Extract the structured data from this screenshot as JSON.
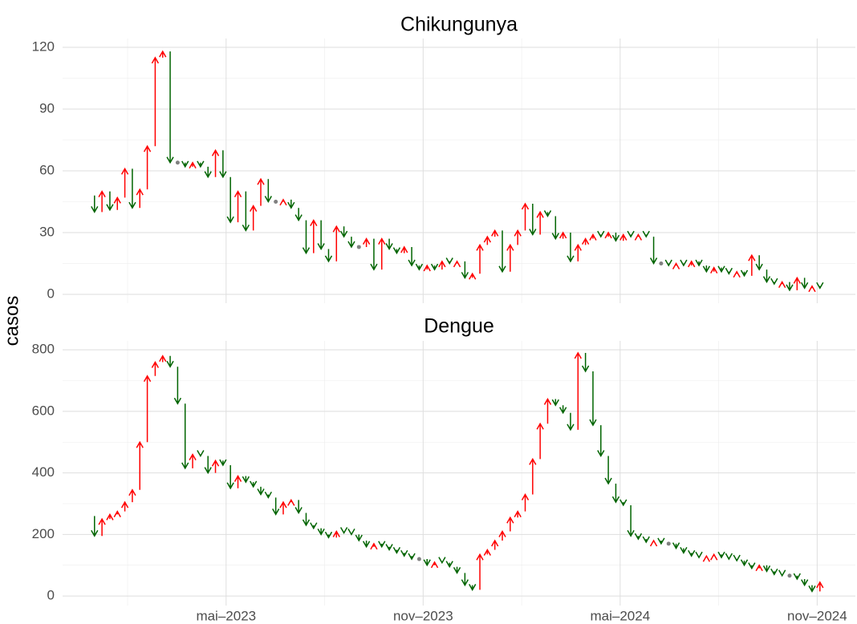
{
  "chart_data": [
    {
      "type": "arrow",
      "title": "Chikungunya",
      "y_label": "casos",
      "x": [
        2022.98,
        2022.999,
        2023.018,
        2023.038,
        2023.057,
        2023.076,
        2023.095,
        2023.114,
        2023.133,
        2023.153,
        2023.172,
        2023.191,
        2023.21,
        2023.229,
        2023.248,
        2023.268,
        2023.287,
        2023.306,
        2023.325,
        2023.344,
        2023.363,
        2023.383,
        2023.402,
        2023.421,
        2023.44,
        2023.459,
        2023.478,
        2023.498,
        2023.517,
        2023.536,
        2023.555,
        2023.574,
        2023.593,
        2023.613,
        2023.632,
        2023.651,
        2023.67,
        2023.689,
        2023.708,
        2023.728,
        2023.747,
        2023.766,
        2023.785,
        2023.804,
        2023.823,
        2023.843,
        2023.862,
        2023.881,
        2023.9,
        2023.919,
        2023.939,
        2023.958,
        2023.977,
        2023.996,
        2024.015,
        2024.034,
        2024.054,
        2024.073,
        2024.092,
        2024.111,
        2024.13,
        2024.149,
        2024.169,
        2024.188,
        2024.207,
        2024.226,
        2024.245,
        2024.264,
        2024.284,
        2024.303,
        2024.322,
        2024.341,
        2024.36,
        2024.379,
        2024.399,
        2024.418,
        2024.437,
        2024.456,
        2024.475,
        2024.494,
        2024.514,
        2024.533,
        2024.552,
        2024.571,
        2024.59,
        2024.609,
        2024.629,
        2024.648,
        2024.667,
        2024.686,
        2024.705,
        2024.724,
        2024.744,
        2024.763,
        2024.782,
        2024.801,
        2024.82,
        2024.84
      ],
      "values": [
        48,
        40,
        50,
        41,
        47,
        61,
        42,
        51,
        72,
        115,
        118,
        64,
        64,
        62,
        64,
        62,
        57,
        70,
        57,
        35,
        50,
        31,
        43,
        56,
        45,
        45,
        46,
        42,
        36,
        20,
        36,
        22,
        16,
        33,
        28,
        23,
        23,
        27,
        12,
        27,
        22,
        20,
        23,
        14,
        12,
        14,
        12,
        16,
        15,
        16,
        8,
        10,
        24,
        28,
        31,
        11,
        24,
        31,
        44,
        29,
        40,
        38,
        27,
        30,
        16,
        24,
        27,
        29,
        28,
        30,
        26,
        29,
        28,
        29,
        28,
        15,
        15,
        14,
        15,
        14,
        16,
        14,
        11,
        13,
        11,
        10,
        11,
        9,
        19,
        12,
        6,
        5,
        6,
        2,
        8,
        3,
        4,
        3
      ],
      "up_color": "#ff0000",
      "down_color": "#006400",
      "flat_color": "#808080",
      "xlim": [
        2022.918,
        2024.93
      ],
      "ylim": [
        -4.3,
        124.3
      ],
      "yticks": [
        0,
        30,
        60,
        90,
        120
      ],
      "grid": true
    },
    {
      "type": "arrow",
      "title": "Dengue",
      "x": [
        2022.98,
        2022.999,
        2023.018,
        2023.038,
        2023.057,
        2023.076,
        2023.095,
        2023.114,
        2023.133,
        2023.153,
        2023.172,
        2023.191,
        2023.21,
        2023.229,
        2023.248,
        2023.268,
        2023.287,
        2023.306,
        2023.325,
        2023.344,
        2023.363,
        2023.383,
        2023.402,
        2023.421,
        2023.44,
        2023.459,
        2023.478,
        2023.498,
        2023.517,
        2023.536,
        2023.555,
        2023.574,
        2023.593,
        2023.613,
        2023.632,
        2023.651,
        2023.67,
        2023.689,
        2023.708,
        2023.728,
        2023.747,
        2023.766,
        2023.785,
        2023.804,
        2023.823,
        2023.843,
        2023.862,
        2023.881,
        2023.9,
        2023.919,
        2023.939,
        2023.958,
        2023.977,
        2023.996,
        2024.015,
        2024.034,
        2024.054,
        2024.073,
        2024.092,
        2024.111,
        2024.13,
        2024.149,
        2024.169,
        2024.188,
        2024.207,
        2024.226,
        2024.245,
        2024.264,
        2024.284,
        2024.303,
        2024.322,
        2024.341,
        2024.36,
        2024.379,
        2024.399,
        2024.418,
        2024.437,
        2024.456,
        2024.475,
        2024.494,
        2024.514,
        2024.533,
        2024.552,
        2024.571,
        2024.59,
        2024.609,
        2024.629,
        2024.648,
        2024.667,
        2024.686,
        2024.705,
        2024.724,
        2024.744,
        2024.763,
        2024.782,
        2024.801,
        2024.82,
        2024.84
      ],
      "values": [
        260,
        195,
        250,
        265,
        275,
        305,
        345,
        500,
        715,
        760,
        780,
        745,
        625,
        415,
        460,
        455,
        400,
        440,
        425,
        350,
        390,
        370,
        355,
        330,
        320,
        265,
        305,
        312,
        270,
        230,
        220,
        200,
        190,
        210,
        205,
        200,
        180,
        160,
        170,
        160,
        150,
        140,
        130,
        120,
        120,
        100,
        110,
        108,
        95,
        75,
        35,
        20,
        135,
        150,
        180,
        210,
        255,
        275,
        330,
        445,
        560,
        640,
        620,
        595,
        540,
        790,
        730,
        555,
        455,
        365,
        305,
        295,
        195,
        185,
        175,
        180,
        170,
        170,
        155,
        140,
        130,
        125,
        130,
        135,
        125,
        120,
        115,
        100,
        90,
        100,
        80,
        70,
        66,
        66,
        55,
        35,
        15,
        45
      ],
      "up_color": "#ff0000",
      "down_color": "#006400",
      "flat_color": "#808080",
      "xlim": [
        2022.918,
        2024.93
      ],
      "ylim": [
        -31,
        829
      ],
      "yticks": [
        0,
        200,
        400,
        600,
        800
      ],
      "xticks": [
        {
          "value": 2023.333,
          "label": "mai–2023"
        },
        {
          "value": 2023.833,
          "label": "nov–2023"
        },
        {
          "value": 2024.333,
          "label": "mai–2024"
        },
        {
          "value": 2024.833,
          "label": "nov–2024"
        }
      ],
      "grid": true
    }
  ]
}
